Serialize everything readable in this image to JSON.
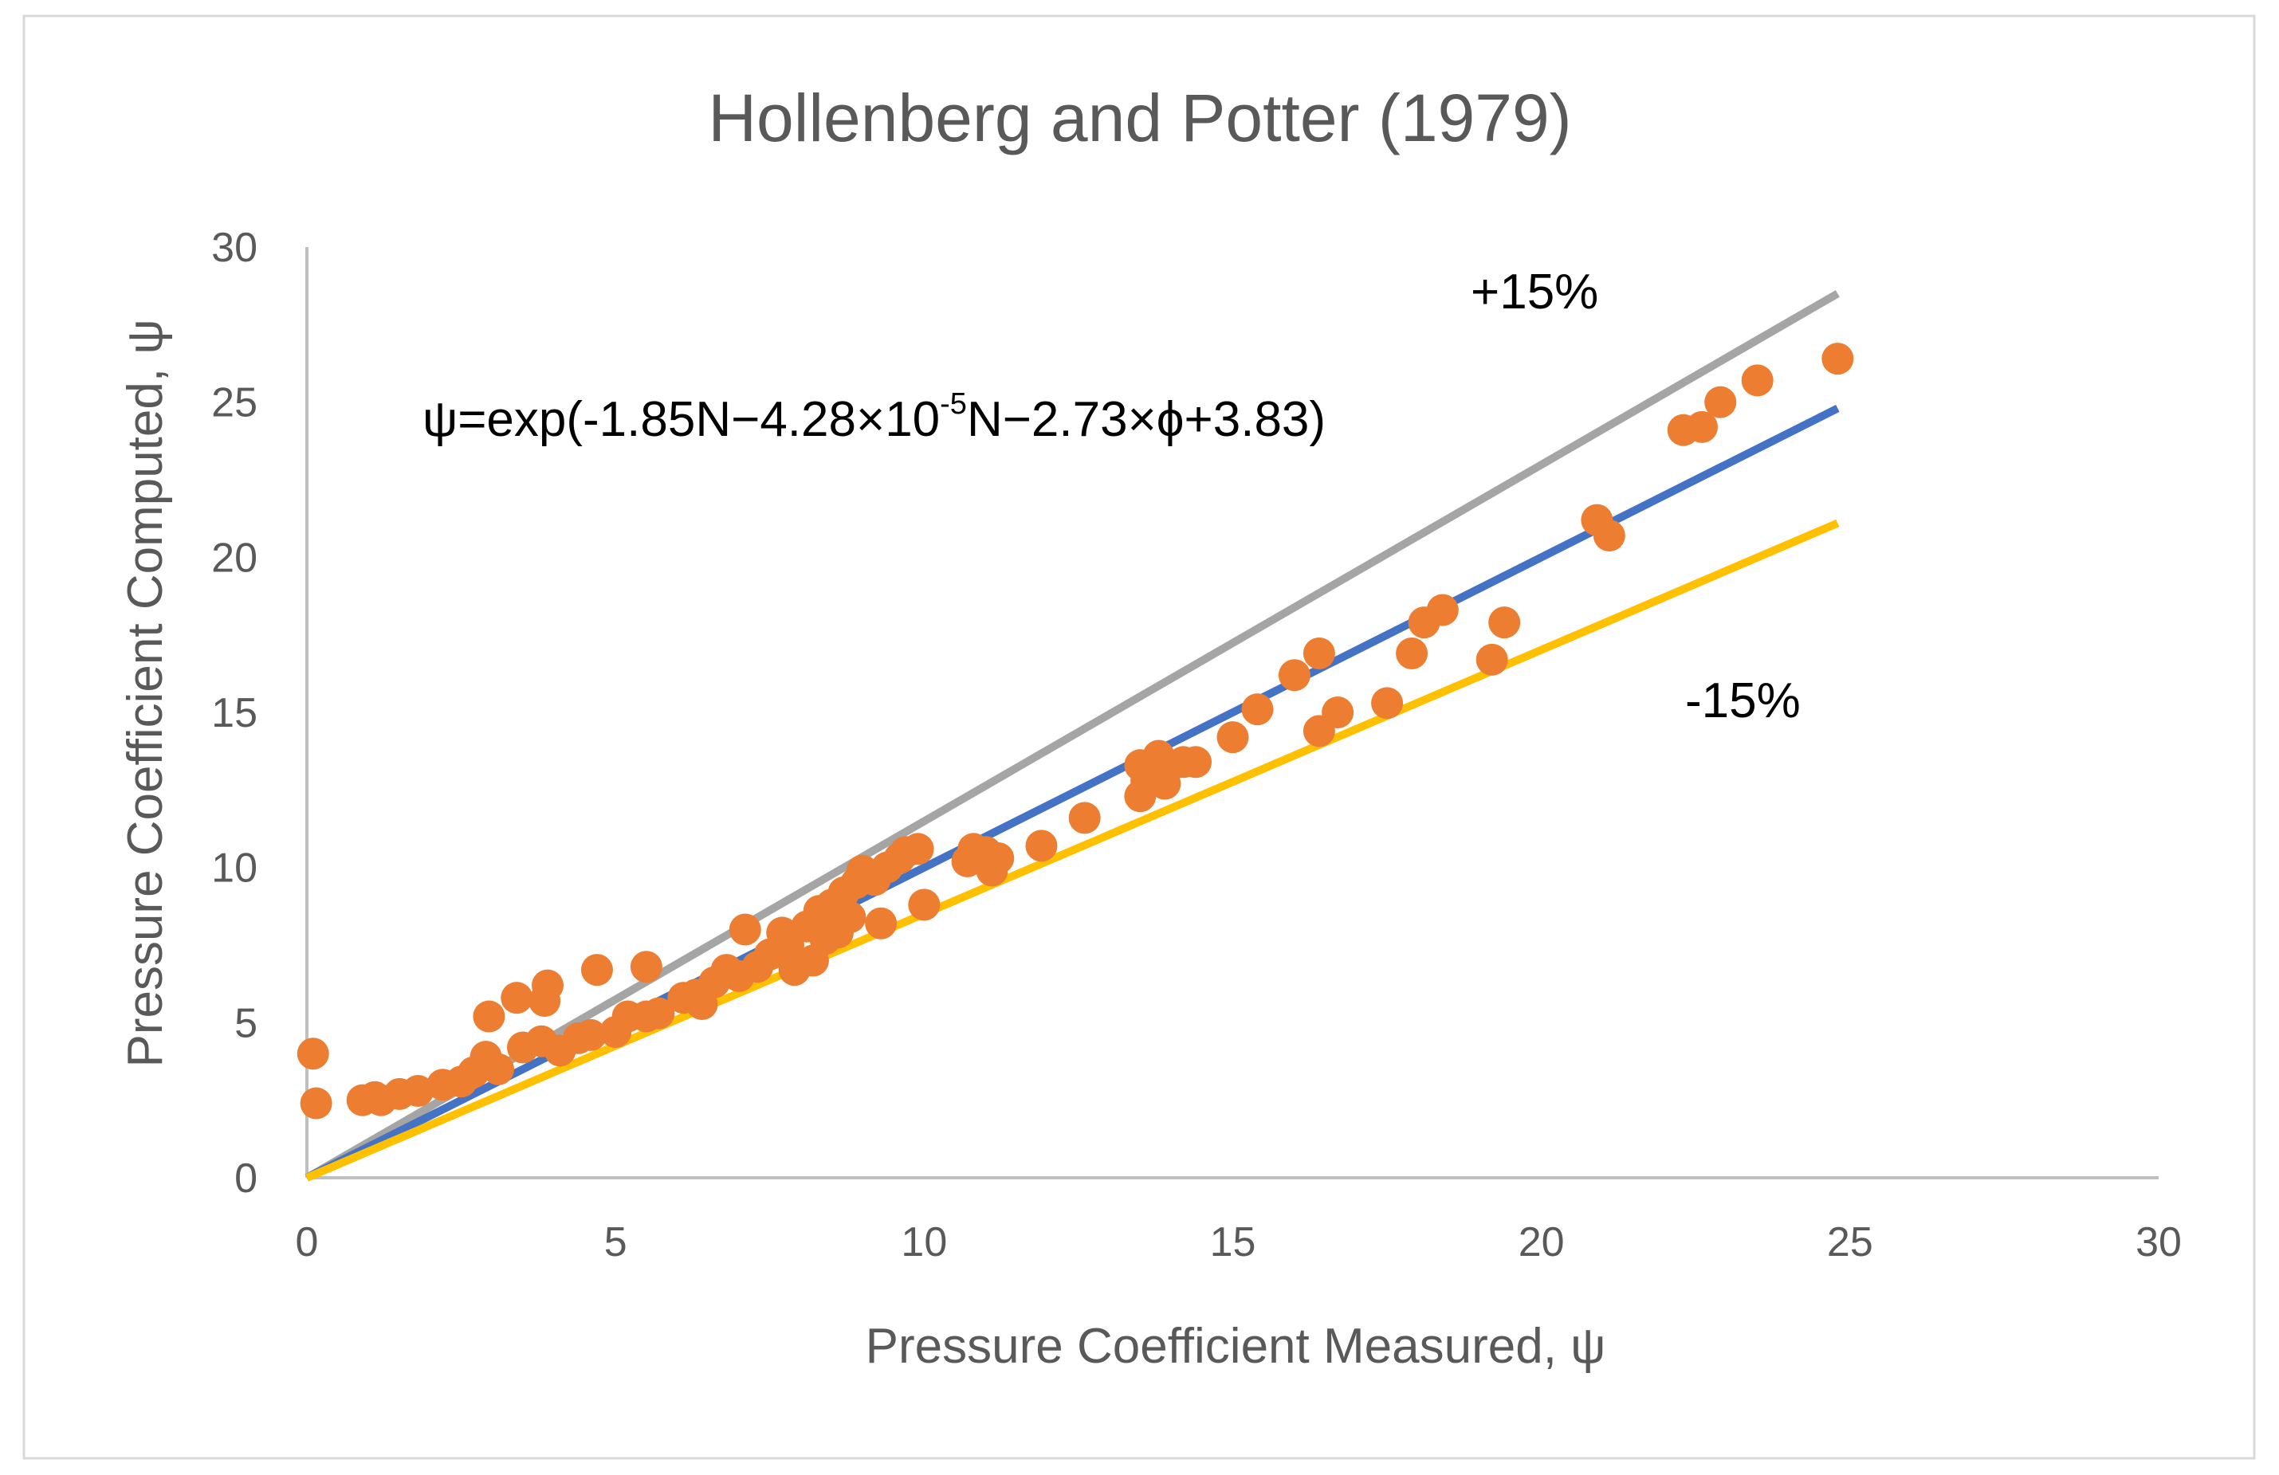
{
  "chart_data": {
    "type": "scatter",
    "title": "Hollenberg and Potter (1979)",
    "xlabel": "Pressure Coefficient Measured, ψ",
    "ylabel": "Pressure Coefficient Computed, ψ",
    "xlim": [
      0,
      30
    ],
    "ylim": [
      0,
      30
    ],
    "x_ticks": [
      "0",
      "5",
      "10",
      "15",
      "20",
      "25",
      "30"
    ],
    "y_ticks": [
      "0",
      "5",
      "10",
      "15",
      "20",
      "25",
      "30"
    ],
    "grid": false,
    "lines": [
      {
        "name": "+15%",
        "x": [
          0,
          24.8
        ],
        "y": [
          0,
          28.5
        ],
        "color": "#a5a5a5"
      },
      {
        "name": "1:1",
        "x": [
          0,
          24.8
        ],
        "y": [
          0,
          24.8
        ],
        "color": "#4472c4"
      },
      {
        "name": "-15%",
        "x": [
          0,
          24.8
        ],
        "y": [
          0,
          21.1
        ],
        "color": "#ffc000"
      }
    ],
    "series": [
      {
        "name": "data",
        "color": "#ed7d31",
        "points": [
          [
            0.1,
            4.0
          ],
          [
            0.15,
            2.4
          ],
          [
            0.9,
            2.5
          ],
          [
            1.1,
            2.6
          ],
          [
            1.2,
            2.5
          ],
          [
            1.5,
            2.7
          ],
          [
            1.8,
            2.8
          ],
          [
            2.2,
            3.0
          ],
          [
            2.5,
            3.1
          ],
          [
            2.7,
            3.4
          ],
          [
            2.9,
            3.9
          ],
          [
            2.95,
            5.2
          ],
          [
            3.1,
            3.5
          ],
          [
            3.4,
            5.8
          ],
          [
            3.5,
            4.2
          ],
          [
            3.8,
            4.4
          ],
          [
            3.85,
            5.7
          ],
          [
            3.9,
            6.2
          ],
          [
            4.1,
            4.1
          ],
          [
            4.4,
            4.5
          ],
          [
            4.6,
            4.6
          ],
          [
            4.7,
            6.7
          ],
          [
            5.0,
            4.7
          ],
          [
            5.2,
            5.2
          ],
          [
            5.5,
            5.2
          ],
          [
            5.5,
            6.8
          ],
          [
            5.7,
            5.3
          ],
          [
            6.1,
            5.8
          ],
          [
            6.3,
            5.9
          ],
          [
            6.4,
            5.6
          ],
          [
            6.6,
            6.3
          ],
          [
            6.8,
            6.7
          ],
          [
            7.0,
            6.5
          ],
          [
            7.1,
            8.0
          ],
          [
            7.3,
            6.8
          ],
          [
            7.5,
            7.2
          ],
          [
            7.7,
            7.9
          ],
          [
            7.8,
            7.5
          ],
          [
            7.9,
            6.7
          ],
          [
            8.1,
            8.1
          ],
          [
            8.2,
            7.0
          ],
          [
            8.3,
            8.6
          ],
          [
            8.4,
            7.7
          ],
          [
            8.5,
            8.8
          ],
          [
            8.6,
            7.9
          ],
          [
            8.7,
            9.2
          ],
          [
            8.8,
            8.4
          ],
          [
            8.9,
            9.5
          ],
          [
            9.0,
            9.9
          ],
          [
            9.2,
            9.6
          ],
          [
            9.3,
            8.2
          ],
          [
            9.4,
            10.0
          ],
          [
            9.6,
            10.3
          ],
          [
            9.7,
            10.5
          ],
          [
            9.9,
            10.6
          ],
          [
            10.0,
            8.8
          ],
          [
            10.7,
            10.2
          ],
          [
            10.8,
            10.6
          ],
          [
            11.0,
            10.5
          ],
          [
            11.1,
            9.9
          ],
          [
            11.2,
            10.3
          ],
          [
            11.9,
            10.7
          ],
          [
            12.6,
            11.6
          ],
          [
            13.5,
            12.3
          ],
          [
            13.5,
            13.3
          ],
          [
            13.6,
            12.8
          ],
          [
            13.7,
            13.1
          ],
          [
            13.8,
            13.6
          ],
          [
            13.9,
            12.7
          ],
          [
            14.0,
            13.3
          ],
          [
            14.2,
            13.4
          ],
          [
            14.4,
            13.4
          ],
          [
            15.0,
            14.2
          ],
          [
            15.4,
            15.1
          ],
          [
            16.0,
            16.2
          ],
          [
            16.4,
            14.4
          ],
          [
            16.4,
            16.9
          ],
          [
            16.7,
            15.0
          ],
          [
            17.5,
            15.3
          ],
          [
            17.9,
            16.9
          ],
          [
            18.1,
            17.9
          ],
          [
            18.4,
            18.3
          ],
          [
            19.2,
            16.7
          ],
          [
            19.4,
            17.9
          ],
          [
            20.9,
            21.2
          ],
          [
            21.1,
            20.7
          ],
          [
            22.3,
            24.1
          ],
          [
            22.6,
            24.2
          ],
          [
            22.9,
            25.0
          ],
          [
            23.5,
            25.7
          ],
          [
            24.8,
            26.4
          ]
        ]
      }
    ],
    "annotations": {
      "plus15": "+15%",
      "minus15": "-15%",
      "equation": {
        "a": "ψ=exp(-1.85N−4.28×10",
        "sup": "-5",
        "b": "N−2.73×ϕ+3.83)"
      }
    }
  }
}
